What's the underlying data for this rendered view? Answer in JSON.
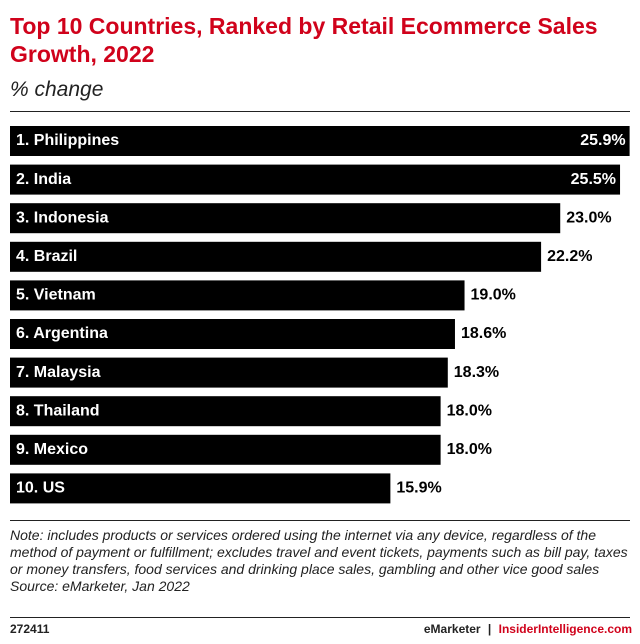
{
  "chart_data": {
    "type": "bar",
    "orientation": "horizontal",
    "title": "Top 10 Countries, Ranked by Retail Ecommerce Sales Growth, 2022",
    "subtitle": "% change",
    "categories": [
      "1. Philippines",
      "2. India",
      "3. Indonesia",
      "4. Brazil",
      "5. Vietnam",
      "6. Argentina",
      "7. Malaysia",
      "8. Thailand",
      "9. Mexico",
      "10. US"
    ],
    "values": [
      25.9,
      25.5,
      23.0,
      22.2,
      19.0,
      18.6,
      18.3,
      18.0,
      18.0,
      15.9
    ],
    "value_labels": [
      "25.9%",
      "25.5%",
      "23.0%",
      "22.2%",
      "19.0%",
      "18.6%",
      "18.3%",
      "18.0%",
      "18.0%",
      "15.9%"
    ],
    "color": "#000000",
    "xlim": [
      0,
      26
    ],
    "note": "Note: includes products or services ordered using the internet via any device, regardless of the method of payment or fulfillment; excludes travel and event tickets, payments such as bill pay, taxes or money transfers, food services and drinking place sales, gambling and other vice good sales",
    "source": "Source: eMarketer, Jan 2022"
  },
  "footer": {
    "id": "272411",
    "brand": "eMarketer",
    "separator": "|",
    "site": "InsiderIntelligence.com"
  }
}
